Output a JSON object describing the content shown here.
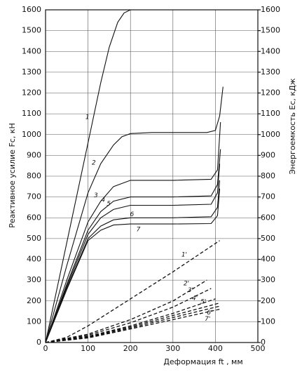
{
  "chart_data": {
    "type": "line",
    "xlabel": "Деформация ft , мм",
    "ylabel": "Реактивное усилие Fc, кН",
    "y2label": "Энергоемкость Ec, кДж",
    "xlim": [
      0,
      500
    ],
    "xticks": [
      0,
      100,
      200,
      300,
      400,
      500
    ],
    "ylim": [
      0,
      1600
    ],
    "yticks": [
      0,
      100,
      200,
      300,
      400,
      500,
      600,
      700,
      800,
      900,
      1000,
      1100,
      1200,
      1300,
      1400,
      1500,
      1600
    ],
    "y2lim": [
      0,
      1600
    ],
    "y2ticks": [
      0,
      100,
      200,
      300,
      400,
      500,
      600,
      700,
      800,
      900,
      1000,
      1100,
      1200,
      1300,
      1400,
      1500,
      1600
    ],
    "grid": true,
    "series": [
      {
        "name": "1",
        "color": "#111111",
        "x": [
          0,
          50,
          100,
          130,
          150,
          170,
          185,
          200,
          300,
          400
        ],
        "values": [
          0,
          480,
          960,
          1250,
          1420,
          1540,
          1585,
          1600,
          1600,
          1600
        ]
      },
      {
        "name": "2",
        "color": "#111111",
        "x": [
          0,
          50,
          100,
          130,
          160,
          180,
          200,
          250,
          300,
          380,
          400,
          410,
          418
        ],
        "values": [
          0,
          370,
          720,
          860,
          950,
          990,
          1005,
          1010,
          1010,
          1010,
          1020,
          1090,
          1230
        ]
      },
      {
        "name": "3",
        "color": "#111111",
        "x": [
          0,
          50,
          100,
          130,
          160,
          200,
          300,
          390,
          405,
          412
        ],
        "values": [
          0,
          300,
          580,
          680,
          750,
          780,
          780,
          785,
          830,
          1060
        ]
      },
      {
        "name": "4",
        "color": "#111111",
        "x": [
          0,
          50,
          100,
          130,
          160,
          200,
          300,
          390,
          405,
          412
        ],
        "values": [
          0,
          280,
          540,
          630,
          680,
          700,
          700,
          705,
          760,
          930
        ]
      },
      {
        "name": "5",
        "color": "#111111",
        "x": [
          0,
          50,
          100,
          130,
          160,
          200,
          300,
          390,
          405,
          410
        ],
        "values": [
          0,
          270,
          520,
          600,
          640,
          660,
          660,
          665,
          720,
          860
        ]
      },
      {
        "name": "6",
        "color": "#111111",
        "x": [
          0,
          50,
          100,
          130,
          160,
          200,
          300,
          390,
          405,
          410
        ],
        "values": [
          0,
          260,
          500,
          560,
          590,
          600,
          600,
          605,
          650,
          780
        ]
      },
      {
        "name": "7",
        "color": "#111111",
        "x": [
          0,
          50,
          100,
          130,
          160,
          200,
          300,
          390,
          405,
          410
        ],
        "values": [
          0,
          255,
          490,
          540,
          565,
          570,
          570,
          572,
          610,
          740
        ]
      },
      {
        "name": "1'",
        "color": "#111111",
        "dash": true,
        "axis": "y2",
        "x": [
          0,
          50,
          100,
          200,
          300,
          410
        ],
        "values": [
          0,
          25,
          80,
          210,
          340,
          490
        ]
      },
      {
        "name": "2'",
        "color": "#111111",
        "dash": true,
        "axis": "y2",
        "x": [
          0,
          100,
          200,
          300,
          380
        ],
        "values": [
          0,
          40,
          110,
          200,
          300
        ]
      },
      {
        "name": "3'",
        "color": "#111111",
        "dash": true,
        "axis": "y2",
        "x": [
          0,
          100,
          200,
          300,
          390
        ],
        "values": [
          0,
          35,
          95,
          170,
          260
        ]
      },
      {
        "name": "4'",
        "color": "#111111",
        "dash": true,
        "axis": "y2",
        "x": [
          0,
          100,
          200,
          300,
          400
        ],
        "values": [
          0,
          30,
          80,
          140,
          210
        ]
      },
      {
        "name": "5'",
        "color": "#111111",
        "dash": true,
        "axis": "y2",
        "x": [
          0,
          100,
          200,
          300,
          410
        ],
        "values": [
          0,
          28,
          75,
          130,
          190
        ]
      },
      {
        "name": "6'",
        "color": "#111111",
        "dash": true,
        "axis": "y2",
        "x": [
          0,
          100,
          200,
          300,
          410
        ],
        "values": [
          0,
          25,
          70,
          120,
          175
        ]
      },
      {
        "name": "7'",
        "color": "#111111",
        "dash": true,
        "axis": "y2",
        "x": [
          0,
          100,
          200,
          300,
          410
        ],
        "values": [
          0,
          22,
          65,
          110,
          160
        ]
      }
    ]
  }
}
